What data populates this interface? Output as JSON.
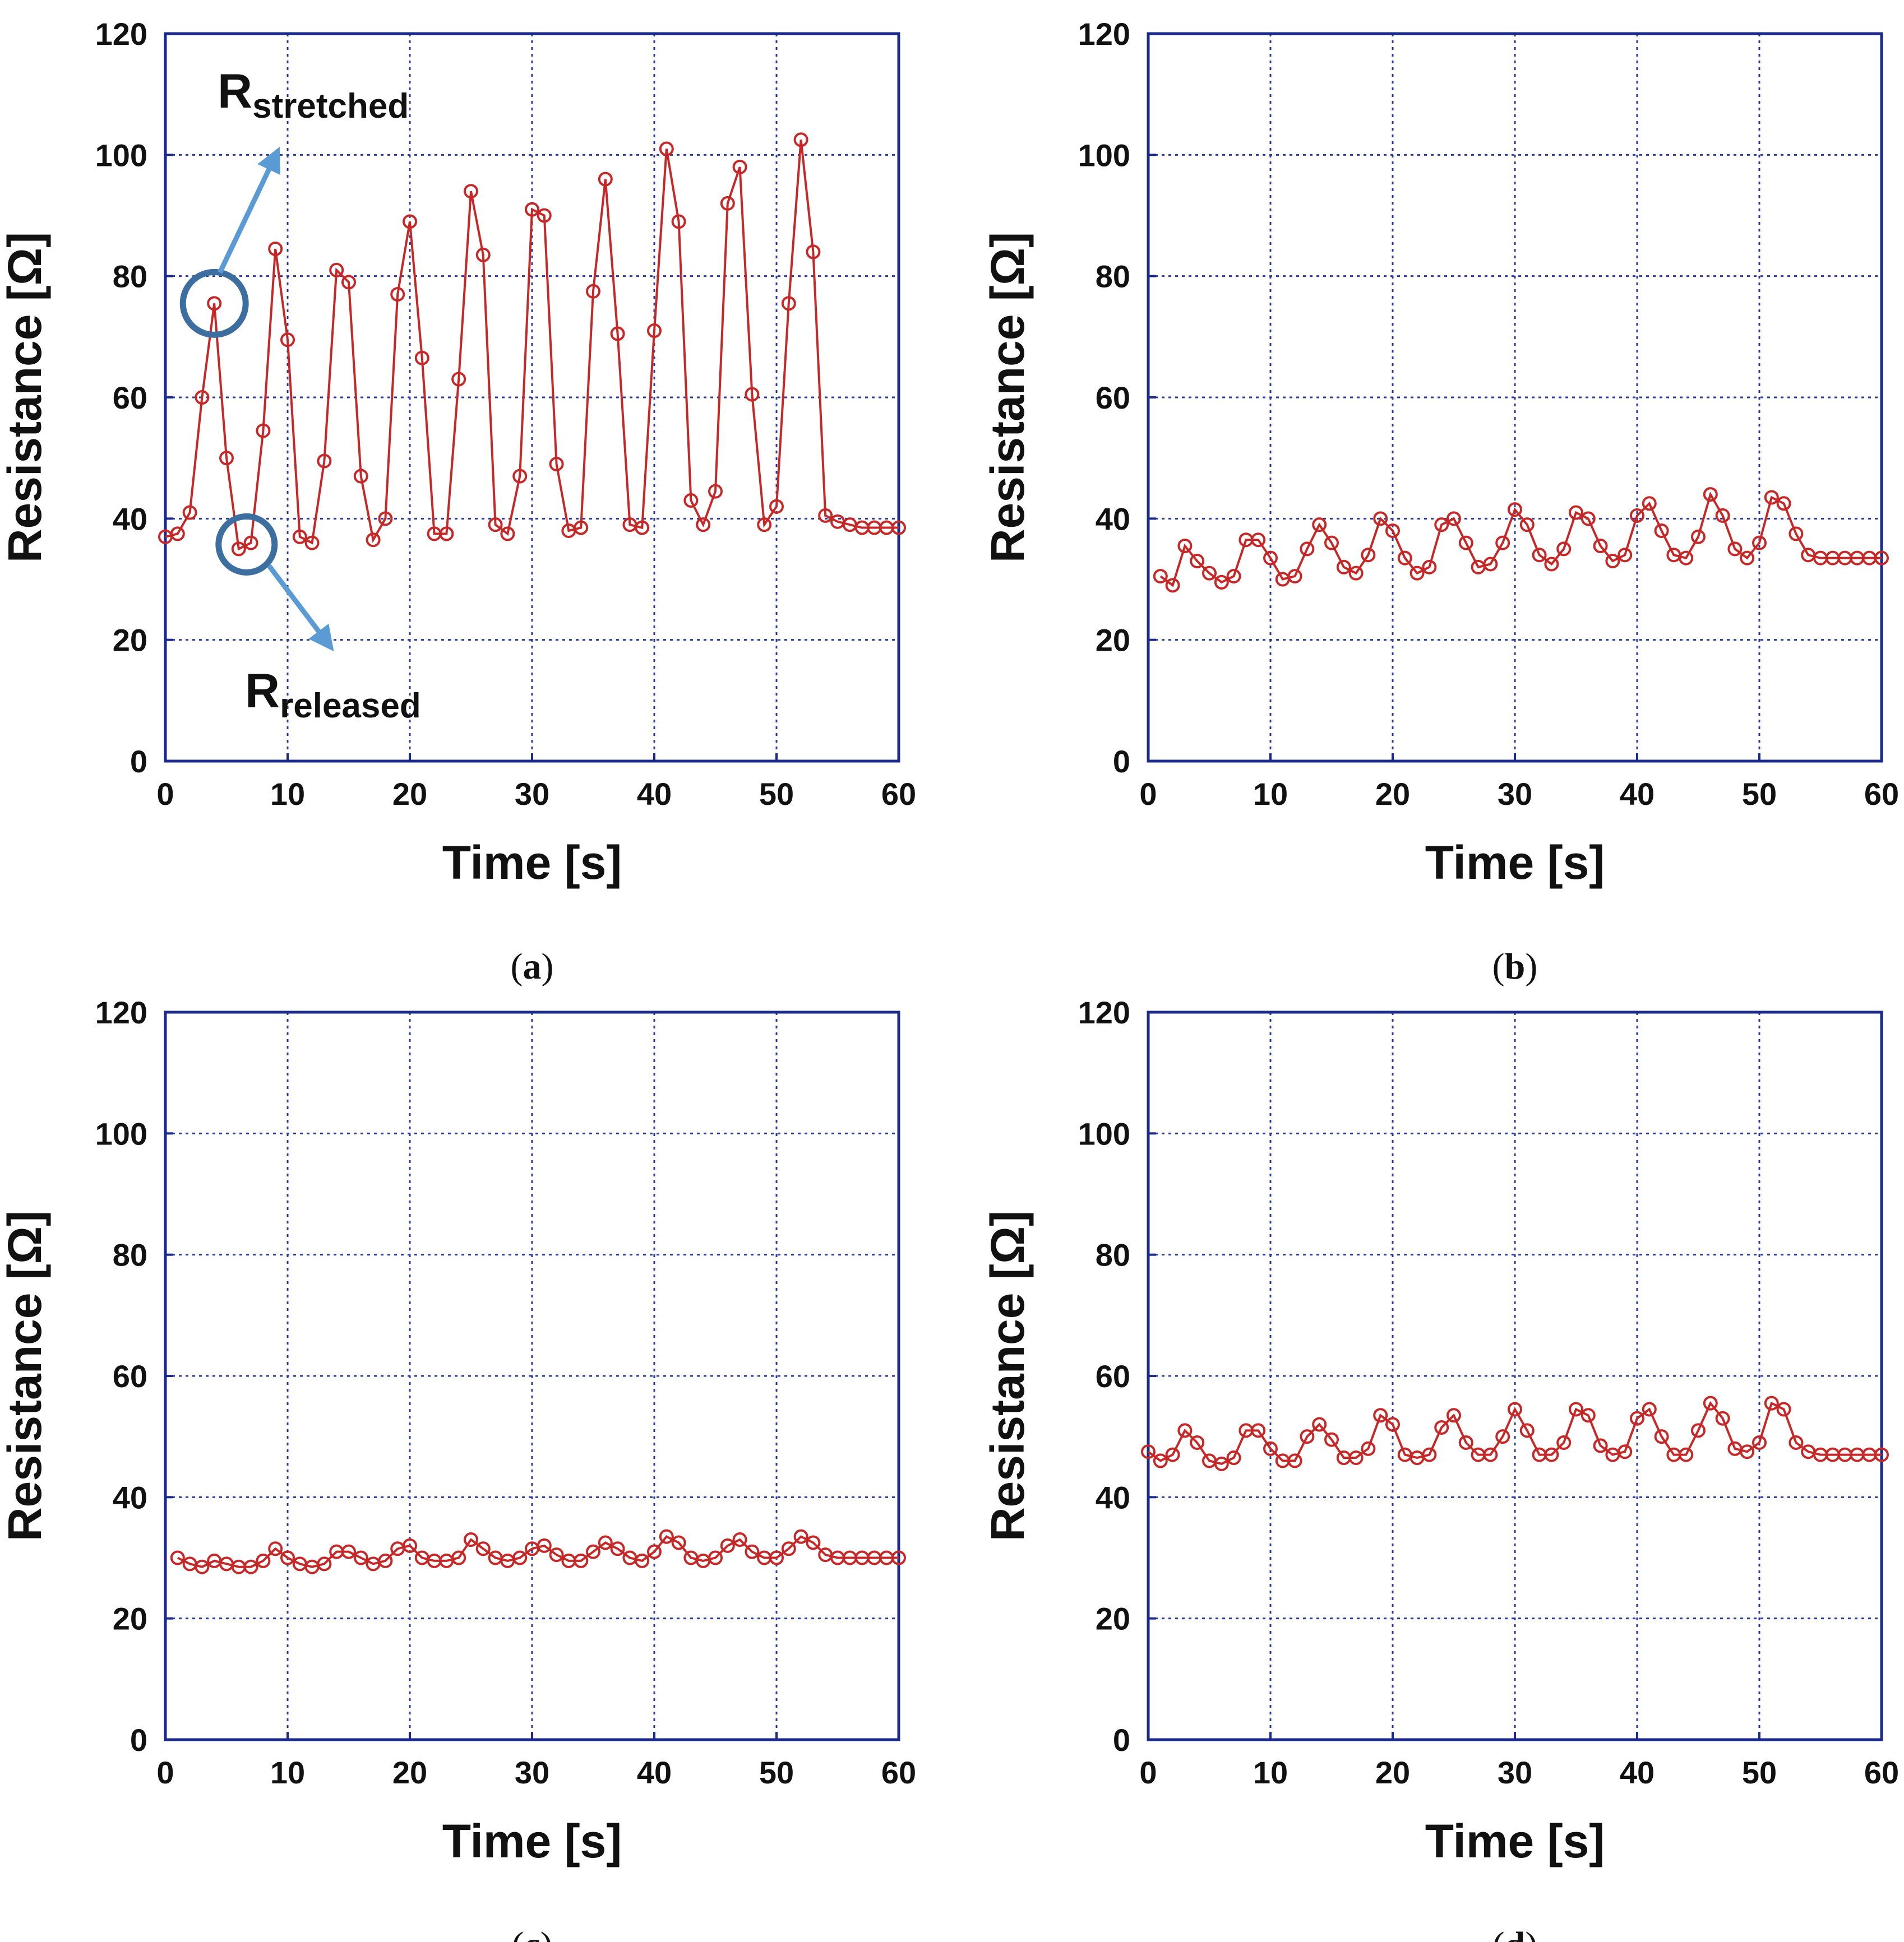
{
  "figure": {
    "colors": {
      "series": "#c62828",
      "frame": "#1a2a8c",
      "grid": "#2a3aa0",
      "annotation_circle": "#3c6fa0",
      "annotation_arrow": "#5b9bd5"
    }
  },
  "chart_data": [
    {
      "type": "line",
      "panel": "a",
      "caption_letter": "a",
      "xlabel": "Time [s]",
      "ylabel": "Resistance [Ω]",
      "xlim": [
        0,
        60
      ],
      "ylim": [
        0,
        120
      ],
      "xticks": [
        0,
        10,
        20,
        30,
        40,
        50,
        60
      ],
      "yticks": [
        0,
        20,
        40,
        60,
        80,
        100,
        120
      ],
      "grid": true,
      "annotations": [
        {
          "base": "R",
          "sub": "stretched",
          "target": [
            4,
            75.5
          ]
        },
        {
          "base": "R",
          "sub": "released",
          "target": [
            6,
            35
          ]
        }
      ],
      "series": [
        {
          "name": "Resistance",
          "x": [
            0,
            1,
            2,
            3,
            4,
            5,
            6,
            7,
            8,
            9,
            10,
            11,
            12,
            13,
            14,
            15,
            16,
            17,
            18,
            19,
            20,
            21,
            22,
            23,
            24,
            25,
            26,
            27,
            28,
            29,
            30,
            31,
            32,
            33,
            34,
            35,
            36,
            37,
            38,
            39,
            40,
            41,
            42,
            43,
            44,
            45,
            46,
            47,
            48,
            49,
            50,
            51,
            52,
            53,
            54,
            55,
            56,
            57,
            58,
            59,
            60
          ],
          "y": [
            37,
            37.5,
            41,
            60,
            75.5,
            50,
            35,
            36,
            54.5,
            84.5,
            69.5,
            37,
            36,
            49.5,
            81,
            79,
            47,
            36.5,
            40,
            77,
            89,
            66.5,
            37.5,
            37.5,
            63,
            94,
            83.5,
            39,
            37.5,
            47,
            91,
            90,
            49,
            38,
            38.5,
            77.5,
            96,
            70.5,
            39,
            38.5,
            71,
            101,
            89,
            43,
            39,
            44.5,
            92,
            98,
            60.5,
            39,
            42,
            75.5,
            102.5,
            84,
            40.5,
            39.5,
            39,
            38.5,
            38.5,
            38.5,
            38.5
          ]
        }
      ]
    },
    {
      "type": "line",
      "panel": "b",
      "caption_letter": "b",
      "xlabel": "Time [s]",
      "ylabel": "Resistance [Ω]",
      "xlim": [
        0,
        60
      ],
      "ylim": [
        0,
        120
      ],
      "xticks": [
        0,
        10,
        20,
        30,
        40,
        50,
        60
      ],
      "yticks": [
        0,
        20,
        40,
        60,
        80,
        100,
        120
      ],
      "grid": true,
      "series": [
        {
          "name": "Resistance",
          "x": [
            1,
            2,
            3,
            4,
            5,
            6,
            7,
            8,
            9,
            10,
            11,
            12,
            13,
            14,
            15,
            16,
            17,
            18,
            19,
            20,
            21,
            22,
            23,
            24,
            25,
            26,
            27,
            28,
            29,
            30,
            31,
            32,
            33,
            34,
            35,
            36,
            37,
            38,
            39,
            40,
            41,
            42,
            43,
            44,
            45,
            46,
            47,
            48,
            49,
            50,
            51,
            52,
            53,
            54,
            55,
            56,
            57,
            58,
            59,
            60
          ],
          "y": [
            30.5,
            29,
            35.5,
            33,
            31,
            29.5,
            30.5,
            36.5,
            36.5,
            33.5,
            30,
            30.5,
            35,
            39,
            36,
            32,
            31,
            34,
            40,
            38,
            33.5,
            31,
            32,
            39,
            40,
            36,
            32,
            32.5,
            36,
            41.5,
            39,
            34,
            32.5,
            35,
            41,
            40,
            35.5,
            33,
            34,
            40.5,
            42.5,
            38,
            34,
            33.5,
            37,
            44,
            40.5,
            35,
            33.5,
            36,
            43.5,
            42.5,
            37.5,
            34,
            33.5,
            33.5,
            33.5,
            33.5,
            33.5,
            33.5
          ]
        }
      ]
    },
    {
      "type": "line",
      "panel": "c",
      "caption_letter": "c",
      "xlabel": "Time [s]",
      "ylabel": "Resistance [Ω]",
      "xlim": [
        0,
        60
      ],
      "ylim": [
        0,
        120
      ],
      "xticks": [
        0,
        10,
        20,
        30,
        40,
        50,
        60
      ],
      "yticks": [
        0,
        20,
        40,
        60,
        80,
        100,
        120
      ],
      "grid": true,
      "series": [
        {
          "name": "Resistance",
          "x": [
            1,
            2,
            3,
            4,
            5,
            6,
            7,
            8,
            9,
            10,
            11,
            12,
            13,
            14,
            15,
            16,
            17,
            18,
            19,
            20,
            21,
            22,
            23,
            24,
            25,
            26,
            27,
            28,
            29,
            30,
            31,
            32,
            33,
            34,
            35,
            36,
            37,
            38,
            39,
            40,
            41,
            42,
            43,
            44,
            45,
            46,
            47,
            48,
            49,
            50,
            51,
            52,
            53,
            54,
            55,
            56,
            57,
            58,
            59,
            60
          ],
          "y": [
            30,
            29,
            28.5,
            29.5,
            29,
            28.5,
            28.5,
            29.5,
            31.5,
            30,
            29,
            28.5,
            29,
            31,
            31,
            30,
            29,
            29.5,
            31.5,
            32,
            30,
            29.5,
            29.5,
            30,
            33,
            31.5,
            30,
            29.5,
            30,
            31.5,
            32,
            30.5,
            29.5,
            29.5,
            31,
            32.5,
            31.5,
            30,
            29.5,
            31,
            33.5,
            32.5,
            30,
            29.5,
            30,
            32,
            33,
            31,
            30,
            30,
            31.5,
            33.5,
            32.5,
            30.5,
            30,
            30,
            30,
            30,
            30,
            30
          ]
        }
      ]
    },
    {
      "type": "line",
      "panel": "d",
      "caption_letter": "d",
      "xlabel": "Time [s]",
      "ylabel": "Resistance [Ω]",
      "xlim": [
        0,
        60
      ],
      "ylim": [
        0,
        120
      ],
      "xticks": [
        0,
        10,
        20,
        30,
        40,
        50,
        60
      ],
      "yticks": [
        0,
        20,
        40,
        60,
        80,
        100,
        120
      ],
      "grid": true,
      "series": [
        {
          "name": "Resistance",
          "x": [
            0,
            1,
            2,
            3,
            4,
            5,
            6,
            7,
            8,
            9,
            10,
            11,
            12,
            13,
            14,
            15,
            16,
            17,
            18,
            19,
            20,
            21,
            22,
            23,
            24,
            25,
            26,
            27,
            28,
            29,
            30,
            31,
            32,
            33,
            34,
            35,
            36,
            37,
            38,
            39,
            40,
            41,
            42,
            43,
            44,
            45,
            46,
            47,
            48,
            49,
            50,
            51,
            52,
            53,
            54,
            55,
            56,
            57,
            58,
            59,
            60
          ],
          "y": [
            47.5,
            46,
            47,
            51,
            49,
            46,
            45.5,
            46.5,
            51,
            51,
            48,
            46,
            46,
            50,
            52,
            49.5,
            46.5,
            46.5,
            48,
            53.5,
            52,
            47,
            46.5,
            47,
            51.5,
            53.5,
            49,
            47,
            47,
            50,
            54.5,
            51,
            47,
            47,
            49,
            54.5,
            53.5,
            48.5,
            47,
            47.5,
            53,
            54.5,
            50,
            47,
            47,
            51,
            55.5,
            53,
            48,
            47.5,
            49,
            55.5,
            54.5,
            49,
            47.5,
            47,
            47,
            47,
            47,
            47,
            47
          ]
        }
      ]
    }
  ]
}
